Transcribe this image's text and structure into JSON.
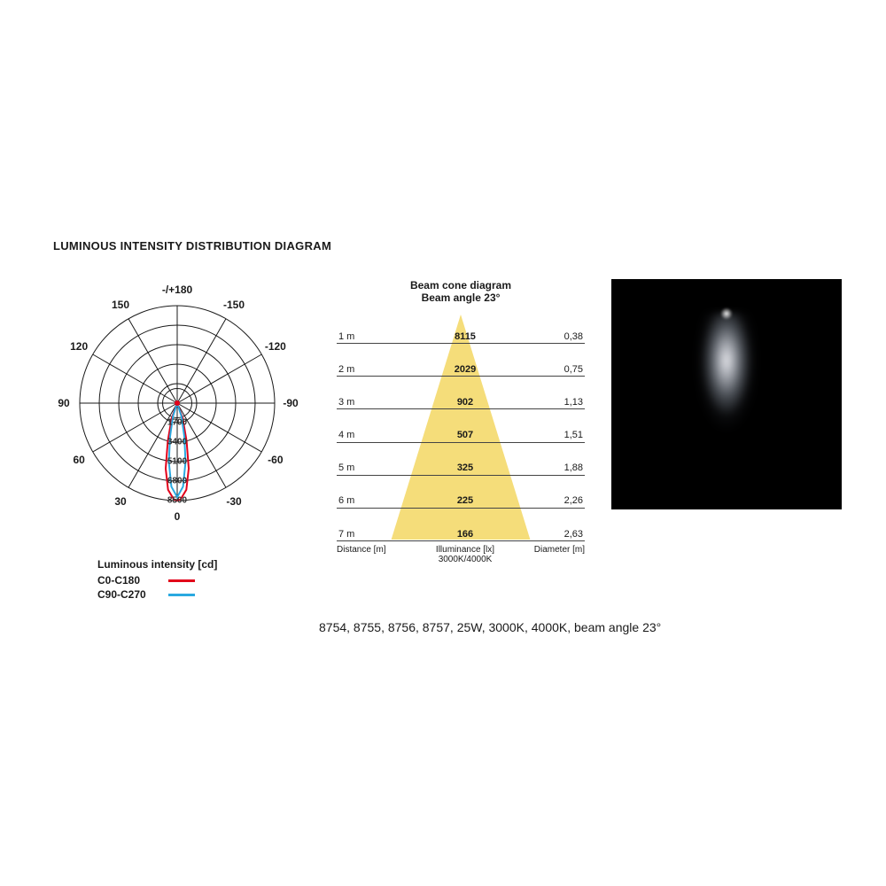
{
  "title": "LUMINOUS INTENSITY DISTRIBUTION DIAGRAM",
  "polar": {
    "type": "polar-intensity",
    "angles": [
      -180,
      -150,
      -120,
      -90,
      -60,
      -30,
      0,
      30,
      60,
      90,
      120,
      150
    ],
    "angle_labels": [
      "-/+180",
      "-150",
      "-120",
      "-90",
      "-60",
      "-30",
      "0",
      "30",
      "60",
      "90",
      "120",
      "150"
    ],
    "ring_values": [
      1700,
      3400,
      5100,
      6800,
      8500
    ],
    "max_value": 8500,
    "grid_color": "#1a1a1a",
    "background_color": "#ffffff",
    "series": [
      {
        "name": "C0-C180",
        "color": "#e2001a",
        "width": 2,
        "points": [
          {
            "angle": -30,
            "r": 0
          },
          {
            "angle": -20,
            "r": 1400
          },
          {
            "angle": -14,
            "r": 3400
          },
          {
            "angle": -10,
            "r": 5800
          },
          {
            "angle": -6,
            "r": 7600
          },
          {
            "angle": -2,
            "r": 8400
          },
          {
            "angle": 0,
            "r": 8500
          },
          {
            "angle": 2,
            "r": 8400
          },
          {
            "angle": 6,
            "r": 7600
          },
          {
            "angle": 10,
            "r": 5800
          },
          {
            "angle": 14,
            "r": 3400
          },
          {
            "angle": 20,
            "r": 1400
          },
          {
            "angle": 30,
            "r": 0
          }
        ]
      },
      {
        "name": "C90-C270",
        "color": "#2aa9e0",
        "width": 2,
        "points": [
          {
            "angle": -30,
            "r": 0
          },
          {
            "angle": -18,
            "r": 1200
          },
          {
            "angle": -12,
            "r": 3000
          },
          {
            "angle": -8,
            "r": 5200
          },
          {
            "angle": -4,
            "r": 7300
          },
          {
            "angle": 0,
            "r": 8200
          },
          {
            "angle": 4,
            "r": 7300
          },
          {
            "angle": 8,
            "r": 5200
          },
          {
            "angle": 12,
            "r": 3000
          },
          {
            "angle": 18,
            "r": 1200
          },
          {
            "angle": 30,
            "r": 0
          }
        ]
      }
    ],
    "legend_title": "Luminous intensity [cd]"
  },
  "cone": {
    "title_line1": "Beam cone diagram",
    "title_line2": "Beam angle 23°",
    "cone_color": "#f5dd7a",
    "grid_color": "#444444",
    "col_labels": {
      "distance": "Distance [m]",
      "illuminance": "Illuminance [lx]\n3000K/4000K",
      "diameter": "Diameter [m]"
    },
    "rows": [
      {
        "distance": "1 m",
        "lx": "8115",
        "diameter": "0,38"
      },
      {
        "distance": "2 m",
        "lx": "2029",
        "diameter": "0,75"
      },
      {
        "distance": "3 m",
        "lx": "902",
        "diameter": "1,13"
      },
      {
        "distance": "4 m",
        "lx": "507",
        "diameter": "1,51"
      },
      {
        "distance": "5 m",
        "lx": "325",
        "diameter": "1,88"
      },
      {
        "distance": "6 m",
        "lx": "225",
        "diameter": "2,26"
      },
      {
        "distance": "7 m",
        "lx": "166",
        "diameter": "2,63"
      }
    ]
  },
  "photo": {
    "background_color": "#000000",
    "beam_color": "#e8ecf2"
  },
  "caption": "8754, 8755, 8756, 8757, 25W, 3000K, 4000K, beam angle 23°"
}
